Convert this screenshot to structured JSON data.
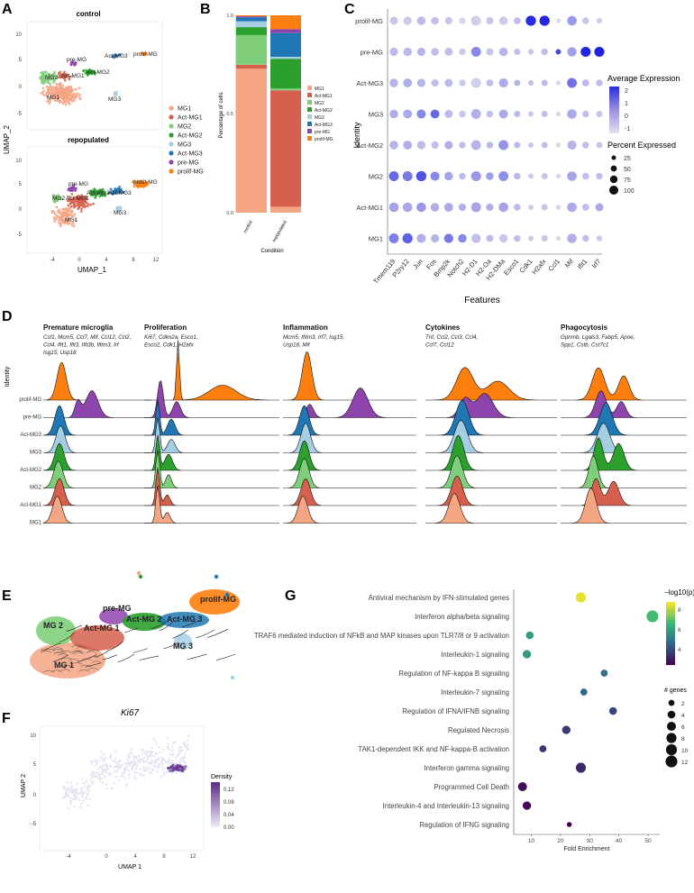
{
  "panels": {
    "A": {
      "letter": "A",
      "top_title": "control",
      "bottom_title": "repopulated",
      "xlabel": "UMAP_1",
      "ylabel": "UMAP_2",
      "x_ticks": [
        "-4",
        "0",
        "4",
        "8",
        "12"
      ],
      "y_ticks": [
        "10",
        "5",
        "0",
        "-5"
      ],
      "legend": [
        "MG1",
        "Act-MG1",
        "MG2",
        "Act-MG2",
        "MG3",
        "Act-MG3",
        "pre-MG",
        "prolif-MG"
      ],
      "cluster_labels_top": [
        "MG1",
        "MG2",
        "Act-MG1",
        "Act-MG2",
        "pre-MG",
        "Act-MG3",
        "prolif-MG",
        "MG3"
      ],
      "cluster_labels_bottom": [
        "MG1",
        "MG2",
        "Act-MG1",
        "Act-MG2",
        "pre-MG",
        "Act-MG3",
        "prolif-MG",
        "MG3"
      ]
    },
    "B": {
      "letter": "B",
      "chart_type": "stacked bar",
      "ylabel": "Percentage of cells",
      "xlabel": "Condition",
      "y_ticks": [
        "1.0",
        "0.5",
        "0.0"
      ],
      "categories": [
        "control",
        "repopulated"
      ],
      "legend": [
        "MG1",
        "Act-MG1",
        "MG2",
        "Act-MG2",
        "MG3",
        "Act-MG3",
        "pre-MG",
        "prolif-MG"
      ]
    },
    "C": {
      "letter": "C",
      "ylabel": "Identity",
      "xlabel": "Features",
      "rows": [
        "prolif-MG",
        "pre-MG",
        "Act-MG3",
        "MG3",
        "Act-MG2",
        "MG2",
        "Act-MG1",
        "MG1"
      ],
      "genes": [
        "Tmem119",
        "P2ry12",
        "Jun",
        "Fos",
        "Bmp2k",
        "Notch2",
        "H2-D1",
        "H2-Oa",
        "H2-DMa",
        "Esco1",
        "Cdk1",
        "H2afx",
        "Ccl1",
        "Mif",
        "Ifit1",
        "Irf7"
      ],
      "legend_expr_title": "Average Expression",
      "legend_expr_ticks": [
        "2",
        "1",
        "0",
        "-1"
      ],
      "legend_pct_title": "Percent Expressed",
      "legend_pct_values": [
        "25",
        "50",
        "75",
        "100"
      ]
    },
    "D": {
      "letter": "D",
      "ylabel": "Identity",
      "rows": [
        "prolif-MG",
        "pre-MG",
        "Act-MG3",
        "MG3",
        "Act-MG2",
        "MG2",
        "Act-MG1",
        "MG1"
      ],
      "groups": [
        {
          "title": "Premature microglia",
          "genes": [
            "Csf1, Mcm5, Ccl7, Mif, Ccl12, Ccl2,",
            "Ccl4, Ifit1, Ifit3, Ifit3b, Ifitm3, Irf",
            "Isg15, Usp18"
          ]
        },
        {
          "title": "Proliferation",
          "genes": [
            "Ki67, Cdkn2a, Esco1,",
            "Esco2, Cdk1, H2afx"
          ]
        },
        {
          "title": "Inflammation",
          "genes": [
            "Mcm5, Ifitm3, Irf7, Isg15,",
            "Usp18, Mif"
          ]
        },
        {
          "title": "Cytokines",
          "genes": [
            "Tnf, Ccl2, Ccl3, Ccl4,",
            "Ccl7, Ccl12"
          ]
        },
        {
          "title": "Phagocytosis",
          "genes": [
            "Gpnmb, Lgals3, Fabp5, Apoe,",
            "Spp1, Cstb, Cst7c1"
          ]
        }
      ]
    },
    "E": {
      "letter": "E",
      "labels": [
        "MG 1",
        "MG 2",
        "Act-MG 1",
        "pre-MG",
        "Act-MG 2",
        "Act-MG 3",
        "prolif-MG",
        "MG 3"
      ]
    },
    "F": {
      "letter": "F",
      "title": "Ki67",
      "xlabel": "UMAP 1",
      "ylabel": "UMAP 2",
      "x_ticks": [
        "-4",
        "0",
        "4",
        "8",
        "12"
      ],
      "y_ticks": [
        "10",
        "5",
        "0",
        "-5"
      ],
      "legend_title": "Density",
      "legend_ticks": [
        "0.12",
        "0.08",
        "0.04",
        "0.00"
      ]
    },
    "G": {
      "letter": "G",
      "legend_color_title": "−log10(p)",
      "legend_color_ticks": [
        "8",
        "6",
        "4"
      ],
      "legend_size_title": "# genes",
      "legend_size_values": [
        "2",
        "4",
        "6",
        "8",
        "10",
        "12"
      ]
    }
  },
  "colors": {
    "MG1": "#f4a582",
    "Act-MG1": "#d6604d",
    "MG2": "#7fcf7a",
    "Act-MG2": "#2ca02c",
    "MG3": "#a6cee3",
    "Act-MG3": "#1f78b4",
    "pre-MG": "#8e44ad",
    "prolif-MG": "#ff7f0e"
  },
  "chart_data": [
    {
      "panel": "B",
      "type": "bar",
      "stacked": true,
      "categories": [
        "control",
        "repopulated"
      ],
      "series": [
        {
          "name": "MG1",
          "values": [
            0.73,
            0.03
          ]
        },
        {
          "name": "Act-MG1",
          "values": [
            0.02,
            0.59
          ]
        },
        {
          "name": "MG2",
          "values": [
            0.15,
            0.01
          ]
        },
        {
          "name": "Act-MG2",
          "values": [
            0.04,
            0.15
          ]
        },
        {
          "name": "MG3",
          "values": [
            0.03,
            0.01
          ]
        },
        {
          "name": "Act-MG3",
          "values": [
            0.02,
            0.12
          ]
        },
        {
          "name": "pre-MG",
          "values": [
            0.005,
            0.02
          ]
        },
        {
          "name": "prolif-MG",
          "values": [
            0.005,
            0.07
          ]
        }
      ],
      "ylim": [
        0,
        1
      ],
      "ylabel": "Percentage of cells",
      "xlabel": "Condition"
    },
    {
      "panel": "C",
      "type": "scatter",
      "kind": "dotplot",
      "rows": [
        "prolif-MG",
        "pre-MG",
        "Act-MG3",
        "MG3",
        "Act-MG2",
        "MG2",
        "Act-MG1",
        "MG1"
      ],
      "genes": [
        "Tmem119",
        "P2ry12",
        "Jun",
        "Fos",
        "Bmp2k",
        "Notch2",
        "H2-D1",
        "H2-Oa",
        "H2-DMa",
        "Esco1",
        "Cdk1",
        "H2afx",
        "Ccl1",
        "Mif",
        "Ifit1",
        "Irf7"
      ],
      "avg_expression": [
        [
          -0.5,
          -0.6,
          -0.3,
          -0.4,
          -0.5,
          -0.8,
          -0.7,
          -0.5,
          -0.6,
          -0.3,
          2.3,
          2.4,
          -0.9,
          0.3,
          -0.5,
          -0.7
        ],
        [
          -0.3,
          -0.3,
          -0.2,
          -0.4,
          -0.4,
          -0.6,
          0.6,
          -0.5,
          -0.2,
          -0.4,
          -0.6,
          -0.4,
          1.8,
          0.2,
          2.4,
          2.5
        ],
        [
          -0.2,
          -0.1,
          -0.2,
          -0.4,
          -0.3,
          -0.6,
          -0.7,
          -0.4,
          0.0,
          -0.2,
          -0.4,
          -0.3,
          -0.8,
          1.0,
          -0.3,
          -0.4
        ],
        [
          -0.1,
          0.0,
          0.6,
          1.2,
          -0.3,
          -0.5,
          -0.1,
          -0.4,
          0.0,
          -0.3,
          -0.5,
          -0.4,
          -0.8,
          0.0,
          -0.4,
          -0.5
        ],
        [
          -0.2,
          -0.1,
          -0.3,
          -0.4,
          -0.1,
          -0.4,
          -0.2,
          -0.3,
          0.4,
          -0.3,
          -0.5,
          -0.4,
          -0.8,
          -0.2,
          -0.4,
          -0.5
        ],
        [
          1.2,
          0.9,
          1.6,
          0.6,
          0.1,
          -0.3,
          0.3,
          0.2,
          0.5,
          -0.3,
          -0.6,
          -0.5,
          -0.8,
          0.1,
          -0.4,
          -0.4
        ],
        [
          0.1,
          0.0,
          0.3,
          -0.1,
          0.0,
          -0.1,
          0.1,
          -0.1,
          0.1,
          -0.3,
          -0.6,
          -0.5,
          -0.8,
          0.0,
          -0.4,
          0.0
        ],
        [
          0.8,
          1.3,
          -0.1,
          -0.2,
          0.9,
          0.6,
          -0.4,
          -0.3,
          -0.5,
          -0.4,
          -0.6,
          -0.5,
          -0.8,
          -0.1,
          -0.4,
          -0.6
        ]
      ],
      "pct_expressed": [
        [
          50,
          55,
          60,
          45,
          40,
          30,
          90,
          40,
          60,
          30,
          95,
          95,
          10,
          80,
          30,
          20
        ],
        [
          55,
          60,
          55,
          45,
          50,
          30,
          85,
          40,
          60,
          25,
          20,
          30,
          15,
          75,
          90,
          90
        ],
        [
          60,
          65,
          55,
          40,
          50,
          30,
          90,
          35,
          70,
          25,
          15,
          25,
          10,
          85,
          35,
          30
        ],
        [
          60,
          65,
          70,
          65,
          50,
          30,
          85,
          30,
          65,
          25,
          15,
          25,
          10,
          80,
          30,
          25
        ],
        [
          60,
          65,
          55,
          40,
          55,
          30,
          85,
          30,
          85,
          25,
          15,
          25,
          10,
          70,
          30,
          25
        ],
        [
          85,
          85,
          95,
          70,
          60,
          30,
          90,
          45,
          85,
          30,
          15,
          25,
          10,
          80,
          35,
          30
        ],
        [
          80,
          80,
          80,
          60,
          65,
          40,
          85,
          40,
          80,
          30,
          15,
          25,
          10,
          80,
          35,
          50
        ],
        [
          85,
          95,
          70,
          55,
          75,
          60,
          75,
          35,
          55,
          30,
          15,
          25,
          10,
          80,
          30,
          20
        ]
      ],
      "xlabel": "Features",
      "ylabel": "Identity"
    },
    {
      "panel": "G",
      "type": "scatter",
      "xlabel": "Fold Enrichment",
      "xlim": [
        4,
        54
      ],
      "x_ticks": [
        10,
        20,
        30,
        40,
        50
      ],
      "points": [
        {
          "term": "Antiviral mechanism by IFN-stimulated genes",
          "fold": 27,
          "neglog10p": 8.3,
          "genes": 8
        },
        {
          "term": "Interferon alpha/beta signaling",
          "fold": 51.5,
          "neglog10p": 6.8,
          "genes": 12
        },
        {
          "term": "TRAF6 mediated induction of NFkB and MAP kinases upon TLR7/8 or 9 activation",
          "fold": 9.5,
          "neglog10p": 6.0,
          "genes": 4
        },
        {
          "term": "Interleukin-1 signaling",
          "fold": 8.5,
          "neglog10p": 6.0,
          "genes": 5
        },
        {
          "term": "Regulation of NF-kappa B signaling",
          "fold": 35,
          "neglog10p": 5.0,
          "genes": 3
        },
        {
          "term": "Interleukin-7 signaling",
          "fold": 28,
          "neglog10p": 4.8,
          "genes": 3
        },
        {
          "term": "Regulation of IFNA/IFNB signaling",
          "fold": 38,
          "neglog10p": 4.2,
          "genes": 4
        },
        {
          "term": "Regulated Necrosis",
          "fold": 22,
          "neglog10p": 4.0,
          "genes": 5
        },
        {
          "term": "TAK1-dependent IKK and NF-kappa-B activation",
          "fold": 14,
          "neglog10p": 3.9,
          "genes": 3
        },
        {
          "term": "Interferon gamma signaling",
          "fold": 27,
          "neglog10p": 3.7,
          "genes": 8
        },
        {
          "term": "Programmed Cell Death",
          "fold": 7,
          "neglog10p": 3.2,
          "genes": 6
        },
        {
          "term": "Interleukin-4 and Interleukin-13 signaling",
          "fold": 8.5,
          "neglog10p": 3.1,
          "genes": 5
        },
        {
          "term": "Regulation of IFNG signaling",
          "fold": 23,
          "neglog10p": 3.0,
          "genes": 1
        }
      ]
    }
  ]
}
